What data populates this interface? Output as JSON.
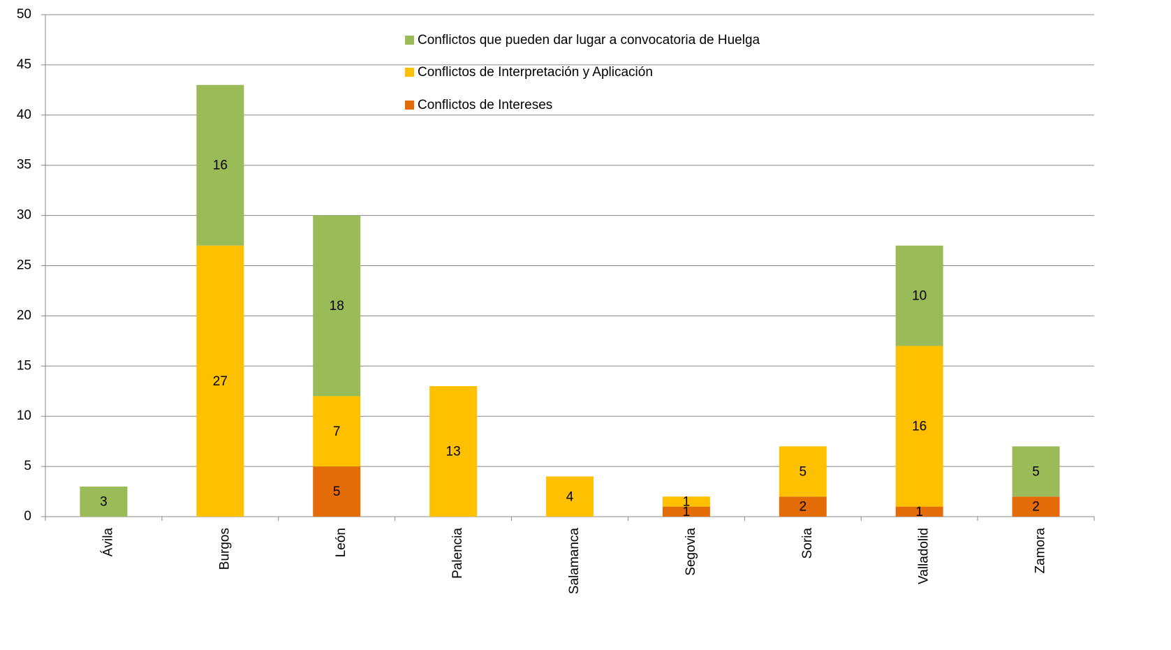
{
  "chart_data": {
    "type": "stacked_bar",
    "categories": [
      "Ávila",
      "Burgos",
      "León",
      "Palencia",
      "Salamanca",
      "Segovia",
      "Soria",
      "Valladolid",
      "Zamora"
    ],
    "series": [
      {
        "name": "Conflictos de Intereses",
        "color": "#e36c09",
        "values": [
          null,
          null,
          5,
          null,
          null,
          1,
          2,
          1,
          2
        ]
      },
      {
        "name": "Conflictos de Interpretación y Aplicación",
        "color": "#ffc000",
        "values": [
          null,
          27,
          7,
          13,
          4,
          1,
          5,
          16,
          null
        ]
      },
      {
        "name": "Conflictos que pueden dar lugar a convocatoria de Huelga",
        "color": "#9bbb59",
        "values": [
          3,
          16,
          18,
          null,
          null,
          null,
          null,
          10,
          5
        ]
      }
    ],
    "ylim": [
      0,
      50
    ],
    "yticks": [
      0,
      5,
      10,
      15,
      20,
      25,
      30,
      35,
      40,
      45,
      50
    ],
    "grid": true,
    "legend": "top"
  }
}
